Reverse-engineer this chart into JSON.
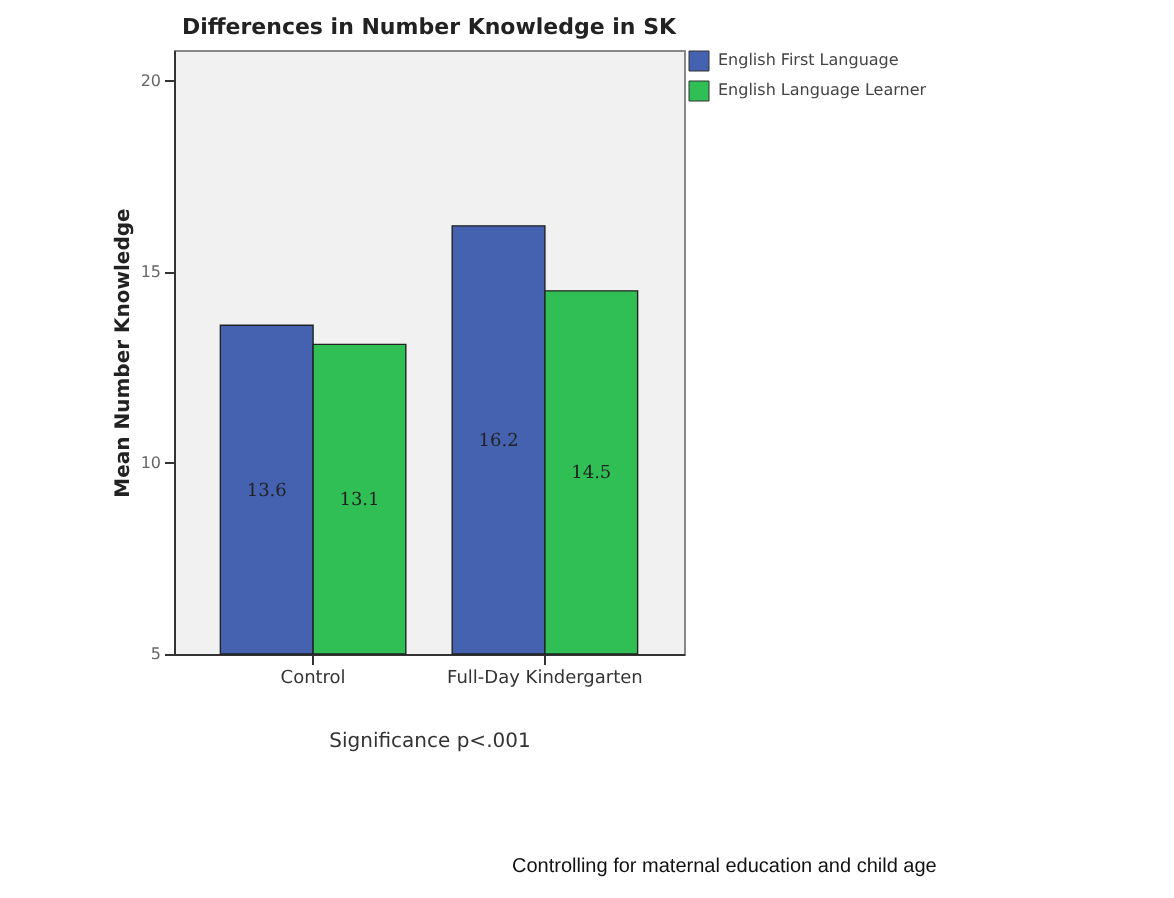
{
  "chart_data": {
    "type": "bar",
    "title": "Differences in Number Knowledge in SK",
    "xlabel": "Significance p<.001",
    "ylabel": "Mean Number Knowledge",
    "categories": [
      "Control",
      "Full-Day Kindergarten"
    ],
    "series": [
      {
        "name": "English First Language",
        "color": "#4562b0",
        "values": [
          13.6,
          16.2
        ]
      },
      {
        "name": "English Language Learner",
        "color": "#2fbf55",
        "values": [
          13.1,
          14.5
        ]
      }
    ],
    "ylim": [
      5,
      20.8
    ],
    "yticks": [
      5,
      10,
      15,
      20
    ],
    "data_labels": true,
    "legend": "top right",
    "grid": false,
    "annotations": [
      "Controlling for maternal education and child age"
    ]
  }
}
